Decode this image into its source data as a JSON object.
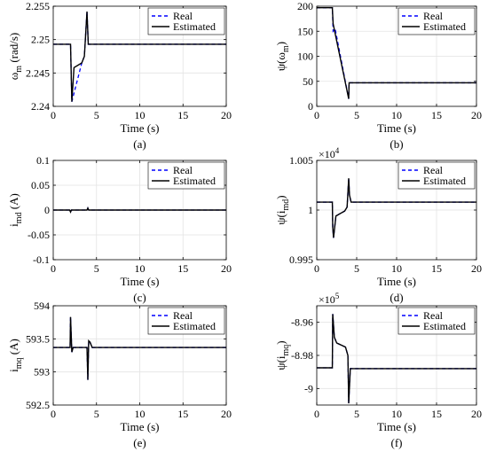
{
  "chart_data": [
    {
      "type": "line",
      "panel": "(a)",
      "xlabel": "Time (s)",
      "ylabel": "ω",
      "ylabel_sub": "m",
      "ylabel_unit": " (rad/s)",
      "xlim": [
        0,
        20
      ],
      "ylim": [
        2.24,
        2.255
      ],
      "xticks": [
        0,
        5,
        10,
        15,
        20
      ],
      "yticks": [
        2.24,
        2.245,
        2.25,
        2.255
      ],
      "yticklabels": [
        "2.24",
        "2.245",
        "2.25",
        "2.255"
      ],
      "exponent": "",
      "grid": true,
      "legend": "top-right",
      "series": [
        {
          "name": "Real",
          "color": "#0000ff",
          "style": "dashed",
          "x": [
            0,
            2,
            2.15,
            3.3,
            3.6,
            3.9,
            4.0,
            4.05,
            4.3,
            20
          ],
          "y": [
            2.2493,
            2.2493,
            2.2407,
            2.2465,
            2.2475,
            2.2542,
            2.251,
            2.2493,
            2.2493,
            2.2493
          ]
        },
        {
          "name": "Estimated",
          "color": "#000000",
          "style": "solid",
          "x": [
            0,
            2,
            2.15,
            2.4,
            3.3,
            3.6,
            3.9,
            4.0,
            4.05,
            4.3,
            20
          ],
          "y": [
            2.2493,
            2.2493,
            2.2407,
            2.2458,
            2.2465,
            2.2475,
            2.2542,
            2.251,
            2.2493,
            2.2493,
            2.2493
          ]
        }
      ]
    },
    {
      "type": "line",
      "panel": "(b)",
      "xlabel": "Time (s)",
      "ylabel": "ψ(ω",
      "ylabel_sub": "m",
      "ylabel_unit": ")",
      "xlim": [
        0,
        20
      ],
      "ylim": [
        0,
        200
      ],
      "xticks": [
        0,
        5,
        10,
        15,
        20
      ],
      "yticks": [
        0,
        50,
        100,
        150,
        200
      ],
      "yticklabels": [
        "0",
        "50",
        "100",
        "150",
        "200"
      ],
      "exponent": "",
      "grid": true,
      "legend": "top-right",
      "series": [
        {
          "name": "Real",
          "color": "#0000ff",
          "style": "dashed",
          "x": [
            0,
            1.95,
            2.05,
            2.3,
            4.0,
            4.05,
            20
          ],
          "y": [
            197,
            197,
            150,
            155,
            15,
            47,
            47
          ]
        },
        {
          "name": "Estimated",
          "color": "#000000",
          "style": "solid",
          "x": [
            0,
            1.95,
            2.05,
            4.0,
            4.05,
            20
          ],
          "y": [
            197,
            197,
            165,
            15,
            47,
            47
          ]
        }
      ]
    },
    {
      "type": "line",
      "panel": "(c)",
      "xlabel": "Time (s)",
      "ylabel": "i",
      "ylabel_sub": "md",
      "ylabel_unit": " (A)",
      "xlim": [
        0,
        20
      ],
      "ylim": [
        -0.1,
        0.1
      ],
      "xticks": [
        0,
        5,
        10,
        15,
        20
      ],
      "yticks": [
        -0.1,
        -0.05,
        0,
        0.05,
        0.1
      ],
      "yticklabels": [
        "-0.1",
        "-0.05",
        "0",
        "0.05",
        "0.1"
      ],
      "exponent": "",
      "grid": true,
      "legend": "top-right",
      "series": [
        {
          "name": "Real",
          "color": "#0000ff",
          "style": "dashed",
          "x": [
            0,
            1.9,
            2.0,
            2.1,
            3.9,
            4.0,
            4.1,
            20
          ],
          "y": [
            0,
            0,
            -0.004,
            0,
            0,
            0.004,
            0,
            0
          ]
        },
        {
          "name": "Estimated",
          "color": "#000000",
          "style": "solid",
          "x": [
            0,
            1.9,
            2.0,
            2.1,
            3.9,
            4.0,
            4.1,
            20
          ],
          "y": [
            0,
            0,
            -0.004,
            0,
            0,
            0.004,
            0,
            0
          ]
        }
      ]
    },
    {
      "type": "line",
      "panel": "(d)",
      "xlabel": "Time (s)",
      "ylabel": "ψ(i",
      "ylabel_sub": "md",
      "ylabel_unit": ")",
      "xlim": [
        0,
        20
      ],
      "ylim": [
        0.995,
        1.005
      ],
      "xticks": [
        0,
        5,
        10,
        15,
        20
      ],
      "yticks": [
        0.995,
        1.0,
        1.005
      ],
      "yticklabels": [
        "0.995",
        "1",
        "1.005"
      ],
      "exponent": "4",
      "grid": true,
      "legend": "top-right",
      "series": [
        {
          "name": "Real",
          "color": "#0000ff",
          "style": "dashed",
          "x": [
            0,
            1.95,
            2.0,
            2.1,
            2.4,
            3.5,
            3.8,
            4.0,
            4.1,
            4.3,
            20
          ],
          "y": [
            1.0008,
            1.0008,
            0.9983,
            0.9972,
            0.9994,
            0.9999,
            1.0003,
            1.0032,
            1.0015,
            1.0008,
            1.0008
          ]
        },
        {
          "name": "Estimated",
          "color": "#000000",
          "style": "solid",
          "x": [
            0,
            1.95,
            2.0,
            2.1,
            2.4,
            3.5,
            3.8,
            4.0,
            4.1,
            4.3,
            20
          ],
          "y": [
            1.0008,
            1.0008,
            0.9983,
            0.9972,
            0.9994,
            0.9999,
            1.0003,
            1.0032,
            1.0015,
            1.0008,
            1.0008
          ]
        }
      ]
    },
    {
      "type": "line",
      "panel": "(e)",
      "xlabel": "Time (s)",
      "ylabel": "i",
      "ylabel_sub": "mq",
      "ylabel_unit": " (A)",
      "xlim": [
        0,
        20
      ],
      "ylim": [
        592.5,
        594
      ],
      "xticks": [
        0,
        5,
        10,
        15,
        20
      ],
      "yticks": [
        592.5,
        593,
        593.5,
        594
      ],
      "yticklabels": [
        "592.5",
        "593",
        "593.5",
        "594"
      ],
      "exponent": "",
      "grid": true,
      "legend": "top-right",
      "series": [
        {
          "name": "Real",
          "color": "#0000ff",
          "style": "dashed",
          "x": [
            0,
            1.95,
            2.0,
            2.15,
            2.3,
            3.9,
            4.0,
            4.1,
            4.25,
            4.5,
            20
          ],
          "y": [
            593.37,
            593.37,
            593.83,
            593.3,
            593.37,
            593.37,
            592.88,
            593.47,
            593.45,
            593.37,
            593.37
          ]
        },
        {
          "name": "Estimated",
          "color": "#000000",
          "style": "solid",
          "x": [
            0,
            1.95,
            2.0,
            2.15,
            2.3,
            3.9,
            4.0,
            4.1,
            4.25,
            4.5,
            20
          ],
          "y": [
            593.37,
            593.37,
            593.83,
            593.3,
            593.37,
            593.37,
            592.88,
            593.47,
            593.45,
            593.37,
            593.37
          ]
        }
      ]
    },
    {
      "type": "line",
      "panel": "(f)",
      "xlabel": "Time (s)",
      "ylabel": "ψ(i",
      "ylabel_sub": "mq",
      "ylabel_unit": ")",
      "xlim": [
        0,
        20
      ],
      "ylim": [
        -9.01,
        -8.95
      ],
      "xticks": [
        0,
        5,
        10,
        15,
        20
      ],
      "yticks": [
        -9.0,
        -8.98,
        -8.96
      ],
      "yticklabels": [
        "-9",
        "-8.98",
        "-8.96"
      ],
      "exponent": "5",
      "grid": true,
      "legend": "top-right",
      "series": [
        {
          "name": "Real",
          "color": "#0000ff",
          "style": "dashed",
          "x": [
            0,
            1.95,
            2.0,
            2.2,
            2.5,
            3.6,
            3.9,
            4.0,
            4.2,
            20
          ],
          "y": [
            -8.9875,
            -8.9875,
            -8.955,
            -8.969,
            -8.9725,
            -8.975,
            -8.98,
            -9.009,
            -8.988,
            -8.988
          ]
        },
        {
          "name": "Estimated",
          "color": "#000000",
          "style": "solid",
          "x": [
            0,
            1.95,
            2.0,
            2.2,
            2.5,
            3.6,
            3.9,
            4.0,
            4.2,
            20
          ],
          "y": [
            -8.9875,
            -8.9875,
            -8.955,
            -8.969,
            -8.9725,
            -8.975,
            -8.98,
            -9.009,
            -8.988,
            -8.988
          ]
        }
      ]
    }
  ]
}
